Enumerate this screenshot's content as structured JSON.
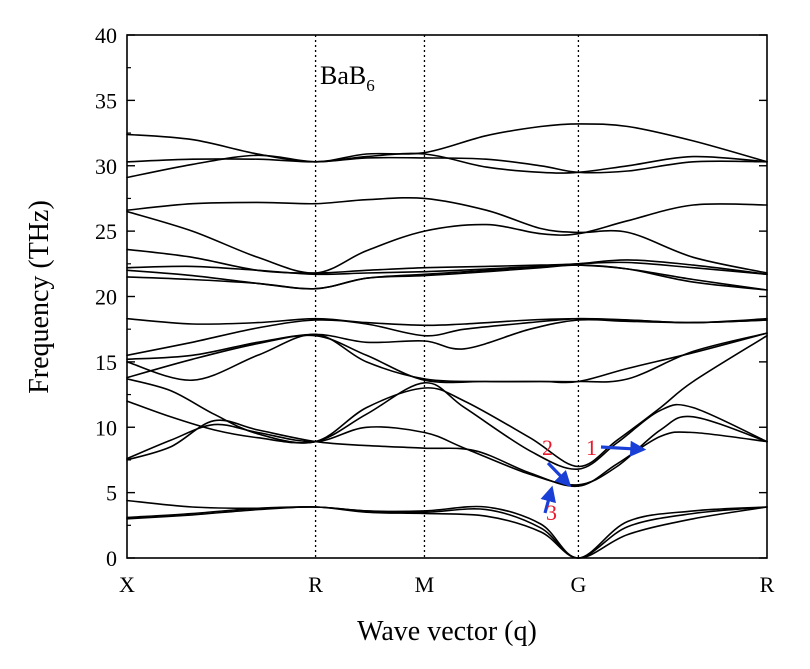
{
  "chart_data": {
    "type": "line",
    "title": "BaB",
    "title_subscript": "6",
    "xlabel": "Wave vector (q)",
    "ylabel": "Frequency (THz)",
    "ylim": [
      0,
      40
    ],
    "y_ticks": [
      0,
      5,
      10,
      15,
      20,
      25,
      30,
      35,
      40
    ],
    "x_ticks": [
      {
        "label": "X",
        "x": 0
      },
      {
        "label": "R",
        "x": 0.866
      },
      {
        "label": "M",
        "x": 1.366
      },
      {
        "label": "G",
        "x": 2.073
      },
      {
        "label": "R",
        "x": 2.939
      }
    ],
    "xlim": [
      0,
      2.939
    ],
    "grid": false,
    "legend": "none",
    "annotations": [
      {
        "text": "1",
        "color": "#e8192c",
        "arrow_color": "#1a3fd6",
        "at": [
          2.37,
          8.3
        ]
      },
      {
        "text": "2",
        "color": "#e8192c",
        "arrow_color": "#1a3fd6",
        "at": [
          2.03,
          5.6
        ]
      },
      {
        "text": "3",
        "color": "#e8192c",
        "arrow_color": "#1a3fd6",
        "at": [
          1.95,
          5.3
        ]
      }
    ],
    "series": [
      {
        "values": [
          [
            0,
            3.0
          ],
          [
            0.3,
            3.3
          ],
          [
            0.6,
            3.7
          ],
          [
            0.866,
            3.9
          ],
          [
            1.1,
            3.5
          ],
          [
            1.366,
            3.4
          ],
          [
            1.65,
            3.2
          ],
          [
            1.9,
            2.0
          ],
          [
            2.073,
            0.0
          ],
          [
            2.3,
            1.8
          ],
          [
            2.6,
            3.0
          ],
          [
            2.939,
            3.9
          ]
        ]
      },
      {
        "values": [
          [
            0,
            3.1
          ],
          [
            0.3,
            3.4
          ],
          [
            0.6,
            3.8
          ],
          [
            0.866,
            3.9
          ],
          [
            1.1,
            3.6
          ],
          [
            1.366,
            3.5
          ],
          [
            1.65,
            3.7
          ],
          [
            1.9,
            2.3
          ],
          [
            2.073,
            0.0
          ],
          [
            2.3,
            2.4
          ],
          [
            2.6,
            3.4
          ],
          [
            2.939,
            3.9
          ]
        ]
      },
      {
        "values": [
          [
            0,
            4.4
          ],
          [
            0.3,
            3.9
          ],
          [
            0.6,
            3.8
          ],
          [
            0.866,
            3.9
          ],
          [
            1.1,
            3.6
          ],
          [
            1.366,
            3.6
          ],
          [
            1.65,
            3.9
          ],
          [
            1.9,
            2.6
          ],
          [
            2.073,
            0.0
          ],
          [
            2.3,
            2.8
          ],
          [
            2.6,
            3.6
          ],
          [
            2.939,
            3.9
          ]
        ]
      },
      {
        "values": [
          [
            0,
            7.5
          ],
          [
            0.2,
            8.5
          ],
          [
            0.4,
            10.5
          ],
          [
            0.6,
            9.8
          ],
          [
            0.866,
            8.9
          ],
          [
            1.1,
            8.6
          ],
          [
            1.366,
            8.4
          ],
          [
            1.6,
            8.2
          ],
          [
            1.85,
            6.5
          ],
          [
            2.073,
            5.5
          ],
          [
            2.25,
            7.2
          ],
          [
            2.45,
            9.3
          ],
          [
            2.6,
            9.6
          ],
          [
            2.939,
            8.9
          ]
        ]
      },
      {
        "values": [
          [
            0,
            7.6
          ],
          [
            0.2,
            9.0
          ],
          [
            0.4,
            10.2
          ],
          [
            0.6,
            9.6
          ],
          [
            0.866,
            8.9
          ],
          [
            1.1,
            10.0
          ],
          [
            1.366,
            9.6
          ],
          [
            1.55,
            8.4
          ],
          [
            1.85,
            6.4
          ],
          [
            2.073,
            5.6
          ],
          [
            2.25,
            7.0
          ],
          [
            2.45,
            9.8
          ],
          [
            2.6,
            10.8
          ],
          [
            2.939,
            8.9
          ]
        ]
      },
      {
        "values": [
          [
            0,
            12.0
          ],
          [
            0.2,
            10.8
          ],
          [
            0.4,
            9.8
          ],
          [
            0.6,
            9.2
          ],
          [
            0.866,
            8.9
          ],
          [
            1.1,
            11.0
          ],
          [
            1.366,
            13.4
          ],
          [
            1.55,
            11.5
          ],
          [
            1.85,
            8.2
          ],
          [
            2.073,
            6.8
          ],
          [
            2.25,
            8.8
          ],
          [
            2.45,
            11.3
          ],
          [
            2.6,
            11.5
          ],
          [
            2.939,
            8.9
          ]
        ]
      },
      {
        "values": [
          [
            0,
            13.7
          ],
          [
            0.2,
            12.8
          ],
          [
            0.4,
            11.0
          ],
          [
            0.6,
            9.5
          ],
          [
            0.866,
            8.9
          ],
          [
            1.1,
            11.5
          ],
          [
            1.366,
            13.0
          ],
          [
            1.55,
            12.0
          ],
          [
            1.85,
            9.2
          ],
          [
            2.073,
            7.0
          ],
          [
            2.25,
            9.0
          ],
          [
            2.45,
            11.5
          ],
          [
            2.6,
            13.5
          ],
          [
            2.939,
            17.0
          ]
        ]
      },
      {
        "values": [
          [
            0,
            13.8
          ],
          [
            0.3,
            15.2
          ],
          [
            0.6,
            16.4
          ],
          [
            0.866,
            17.0
          ],
          [
            1.1,
            15.5
          ],
          [
            1.366,
            13.6
          ],
          [
            1.65,
            13.5
          ],
          [
            1.9,
            13.5
          ],
          [
            2.073,
            13.5
          ],
          [
            2.3,
            14.5
          ],
          [
            2.6,
            15.7
          ],
          [
            2.939,
            17.2
          ]
        ]
      },
      {
        "values": [
          [
            0,
            15.0
          ],
          [
            0.3,
            13.6
          ],
          [
            0.6,
            15.5
          ],
          [
            0.866,
            17.1
          ],
          [
            1.1,
            15.0
          ],
          [
            1.366,
            13.7
          ],
          [
            1.65,
            13.5
          ],
          [
            1.9,
            13.5
          ],
          [
            2.073,
            13.5
          ],
          [
            2.3,
            13.7
          ],
          [
            2.6,
            15.8
          ],
          [
            2.939,
            17.2
          ]
        ]
      },
      {
        "values": [
          [
            0,
            15.2
          ],
          [
            0.3,
            15.5
          ],
          [
            0.6,
            16.5
          ],
          [
            0.866,
            17.1
          ],
          [
            1.1,
            16.5
          ],
          [
            1.366,
            16.6
          ],
          [
            1.55,
            16.0
          ],
          [
            1.85,
            17.5
          ],
          [
            2.073,
            18.2
          ],
          [
            2.3,
            18.1
          ],
          [
            2.6,
            18.0
          ],
          [
            2.939,
            18.2
          ]
        ]
      },
      {
        "values": [
          [
            0,
            15.5
          ],
          [
            0.3,
            16.5
          ],
          [
            0.6,
            17.6
          ],
          [
            0.866,
            18.2
          ],
          [
            1.1,
            17.9
          ],
          [
            1.366,
            17.0
          ],
          [
            1.55,
            17.5
          ],
          [
            1.85,
            18.0
          ],
          [
            2.073,
            18.3
          ],
          [
            2.3,
            18.2
          ],
          [
            2.6,
            18.0
          ],
          [
            2.939,
            18.2
          ]
        ]
      },
      {
        "values": [
          [
            0,
            18.3
          ],
          [
            0.3,
            17.9
          ],
          [
            0.6,
            18.0
          ],
          [
            0.866,
            18.3
          ],
          [
            1.1,
            18.0
          ],
          [
            1.366,
            17.8
          ],
          [
            1.55,
            17.9
          ],
          [
            1.85,
            18.2
          ],
          [
            2.073,
            18.3
          ],
          [
            2.3,
            18.2
          ],
          [
            2.6,
            18.0
          ],
          [
            2.939,
            18.3
          ]
        ]
      },
      {
        "values": [
          [
            0,
            21.5
          ],
          [
            0.3,
            21.3
          ],
          [
            0.6,
            21.0
          ],
          [
            0.866,
            20.6
          ],
          [
            1.1,
            21.4
          ],
          [
            1.366,
            21.6
          ],
          [
            1.65,
            21.9
          ],
          [
            1.9,
            22.2
          ],
          [
            2.073,
            22.4
          ],
          [
            2.3,
            22.1
          ],
          [
            2.6,
            21.1
          ],
          [
            2.939,
            20.5
          ]
        ]
      },
      {
        "values": [
          [
            0,
            22.0
          ],
          [
            0.3,
            21.6
          ],
          [
            0.6,
            21.0
          ],
          [
            0.866,
            20.6
          ],
          [
            1.1,
            21.4
          ],
          [
            1.366,
            21.7
          ],
          [
            1.65,
            22.0
          ],
          [
            1.9,
            22.3
          ],
          [
            2.073,
            22.4
          ],
          [
            2.3,
            22.1
          ],
          [
            2.6,
            21.3
          ],
          [
            2.939,
            20.5
          ]
        ]
      },
      {
        "values": [
          [
            0,
            22.2
          ],
          [
            0.3,
            22.3
          ],
          [
            0.6,
            22.0
          ],
          [
            0.866,
            21.7
          ],
          [
            1.1,
            21.8
          ],
          [
            1.366,
            21.9
          ],
          [
            1.65,
            22.1
          ],
          [
            1.9,
            22.3
          ],
          [
            2.073,
            22.5
          ],
          [
            2.3,
            22.6
          ],
          [
            2.6,
            22.2
          ],
          [
            2.939,
            21.7
          ]
        ]
      },
      {
        "values": [
          [
            0,
            23.6
          ],
          [
            0.3,
            23.0
          ],
          [
            0.6,
            22.0
          ],
          [
            0.866,
            21.8
          ],
          [
            1.1,
            22.0
          ],
          [
            1.366,
            22.2
          ],
          [
            1.65,
            22.3
          ],
          [
            1.9,
            22.4
          ],
          [
            2.073,
            22.5
          ],
          [
            2.3,
            22.8
          ],
          [
            2.6,
            22.4
          ],
          [
            2.939,
            21.7
          ]
        ]
      },
      {
        "values": [
          [
            0,
            26.5
          ],
          [
            0.3,
            25.0
          ],
          [
            0.6,
            23.0
          ],
          [
            0.866,
            21.8
          ],
          [
            1.1,
            23.5
          ],
          [
            1.366,
            25.0
          ],
          [
            1.65,
            25.5
          ],
          [
            1.9,
            24.8
          ],
          [
            2.073,
            24.8
          ],
          [
            2.3,
            25.8
          ],
          [
            2.6,
            27.0
          ],
          [
            2.939,
            27.0
          ]
        ]
      },
      {
        "values": [
          [
            0,
            26.6
          ],
          [
            0.3,
            27.1
          ],
          [
            0.6,
            27.2
          ],
          [
            0.866,
            27.1
          ],
          [
            1.1,
            27.4
          ],
          [
            1.366,
            27.5
          ],
          [
            1.65,
            26.6
          ],
          [
            1.9,
            25.2
          ],
          [
            2.073,
            24.9
          ],
          [
            2.3,
            24.9
          ],
          [
            2.6,
            23.0
          ],
          [
            2.939,
            21.8
          ]
        ]
      },
      {
        "values": [
          [
            0,
            29.1
          ],
          [
            0.3,
            30.1
          ],
          [
            0.6,
            30.8
          ],
          [
            0.866,
            30.3
          ],
          [
            1.1,
            30.7
          ],
          [
            1.366,
            30.9
          ],
          [
            1.65,
            29.9
          ],
          [
            1.9,
            29.5
          ],
          [
            2.073,
            29.5
          ],
          [
            2.3,
            30.0
          ],
          [
            2.6,
            30.7
          ],
          [
            2.939,
            30.3
          ]
        ]
      },
      {
        "values": [
          [
            0,
            30.3
          ],
          [
            0.3,
            30.5
          ],
          [
            0.6,
            30.5
          ],
          [
            0.866,
            30.3
          ],
          [
            1.1,
            30.6
          ],
          [
            1.366,
            30.6
          ],
          [
            1.65,
            30.5
          ],
          [
            1.9,
            30.0
          ],
          [
            2.073,
            29.5
          ],
          [
            2.3,
            29.6
          ],
          [
            2.6,
            30.3
          ],
          [
            2.939,
            30.3
          ]
        ]
      },
      {
        "values": [
          [
            0,
            32.4
          ],
          [
            0.3,
            32.0
          ],
          [
            0.6,
            30.9
          ],
          [
            0.866,
            30.3
          ],
          [
            1.1,
            30.9
          ],
          [
            1.366,
            31.0
          ],
          [
            1.65,
            32.3
          ],
          [
            1.9,
            33.0
          ],
          [
            2.073,
            33.2
          ],
          [
            2.3,
            33.0
          ],
          [
            2.6,
            31.9
          ],
          [
            2.939,
            30.3
          ]
        ]
      }
    ]
  }
}
